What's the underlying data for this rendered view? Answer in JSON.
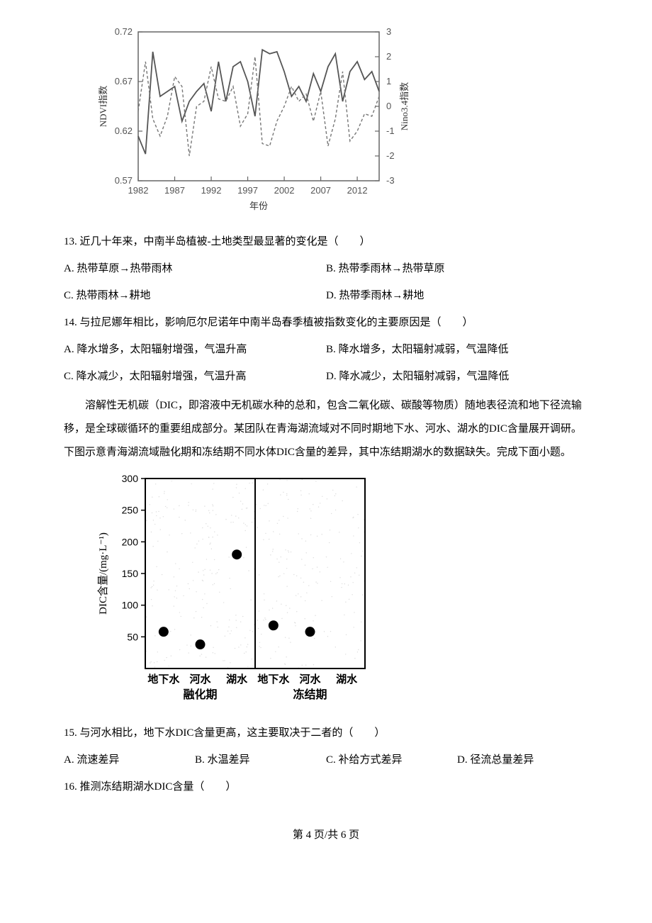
{
  "chart1": {
    "type": "line",
    "left_ylabel": "NDVI指数",
    "right_ylabel": "Nino3.4指数",
    "xlabel": "年份",
    "x_ticks": [
      "1982",
      "1987",
      "1992",
      "1997",
      "2002",
      "2007",
      "2012"
    ],
    "left_y_ticks": [
      "0.57",
      "0.62",
      "0.67",
      "0.72"
    ],
    "left_ylim": [
      0.57,
      0.72
    ],
    "right_y_ticks": [
      "-3",
      "-2",
      "-1",
      "0",
      "1",
      "2",
      "3"
    ],
    "right_ylim": [
      -3,
      3
    ],
    "axis_color": "#666666",
    "grid_color": "#cccccc",
    "tick_text_color": "#555555",
    "series": [
      {
        "name": "NDVI",
        "axis": "left",
        "style": "solid",
        "color": "#555555",
        "width": 1.8,
        "data": [
          [
            1982,
            0.615
          ],
          [
            1983,
            0.597
          ],
          [
            1984,
            0.7
          ],
          [
            1985,
            0.655
          ],
          [
            1986,
            0.66
          ],
          [
            1987,
            0.665
          ],
          [
            1988,
            0.63
          ],
          [
            1989,
            0.65
          ],
          [
            1990,
            0.66
          ],
          [
            1991,
            0.668
          ],
          [
            1992,
            0.64
          ],
          [
            1993,
            0.69
          ],
          [
            1994,
            0.65
          ],
          [
            1995,
            0.685
          ],
          [
            1996,
            0.69
          ],
          [
            1997,
            0.67
          ],
          [
            1998,
            0.635
          ],
          [
            1999,
            0.702
          ],
          [
            2000,
            0.698
          ],
          [
            2001,
            0.7
          ],
          [
            2002,
            0.68
          ],
          [
            2003,
            0.655
          ],
          [
            2004,
            0.665
          ],
          [
            2005,
            0.65
          ],
          [
            2006,
            0.678
          ],
          [
            2007,
            0.66
          ],
          [
            2008,
            0.685
          ],
          [
            2009,
            0.698
          ],
          [
            2010,
            0.65
          ],
          [
            2011,
            0.68
          ],
          [
            2012,
            0.69
          ],
          [
            2013,
            0.672
          ],
          [
            2014,
            0.68
          ],
          [
            2015,
            0.66
          ]
        ]
      },
      {
        "name": "Nino3.4",
        "axis": "right",
        "style": "dashed",
        "color": "#777777",
        "width": 1.4,
        "data": [
          [
            1982,
            -0.2
          ],
          [
            1983,
            1.8
          ],
          [
            1984,
            -0.5
          ],
          [
            1985,
            -1.2
          ],
          [
            1986,
            -0.4
          ],
          [
            1987,
            1.2
          ],
          [
            1988,
            0.8
          ],
          [
            1989,
            -2.0
          ],
          [
            1990,
            0.0
          ],
          [
            1991,
            0.2
          ],
          [
            1992,
            1.6
          ],
          [
            1993,
            0.3
          ],
          [
            1994,
            0.2
          ],
          [
            1995,
            0.8
          ],
          [
            1996,
            -0.8
          ],
          [
            1997,
            -0.3
          ],
          [
            1998,
            2.0
          ],
          [
            1999,
            -1.5
          ],
          [
            2000,
            -1.6
          ],
          [
            2001,
            -0.6
          ],
          [
            2002,
            0.0
          ],
          [
            2003,
            0.8
          ],
          [
            2004,
            0.2
          ],
          [
            2005,
            0.5
          ],
          [
            2006,
            -0.6
          ],
          [
            2007,
            0.6
          ],
          [
            2008,
            -1.6
          ],
          [
            2009,
            -0.5
          ],
          [
            2010,
            1.4
          ],
          [
            2011,
            -1.4
          ],
          [
            2012,
            -1.0
          ],
          [
            2013,
            -0.3
          ],
          [
            2014,
            -0.4
          ],
          [
            2015,
            0.4
          ]
        ]
      }
    ]
  },
  "q13": {
    "text": "13. 近几十年来，中南半岛植被-土地类型最显著的变化是（　　）",
    "optA": "A. 热带草原→热带雨林",
    "optB": "B. 热带季雨林→热带草原",
    "optC": "C. 热带雨林→耕地",
    "optD": "D. 热带季雨林→耕地"
  },
  "q14": {
    "text": "14. 与拉尼娜年相比，影响厄尔尼诺年中南半岛春季植被指数变化的主要原因是（　　）",
    "optA": "A. 降水增多，太阳辐射增强，气温升高",
    "optB": "B. 降水增多，太阳辐射减弱，气温降低",
    "optC": "C. 降水减少，太阳辐射增强，气温升高",
    "optD": "D. 降水减少，太阳辐射减弱，气温降低"
  },
  "passage2": "溶解性无机碳（DIC，即溶液中无机碳水种的总和，包含二氧化碳、碳酸等物质）随地表径流和地下径流输移，是全球碳循环的重要组成部分。某团队在青海湖流域对不同时期地下水、河水、湖水的DIC含量展开调研。下图示意青海湖流域融化期和冻结期不同水体DIC含量的差异，其中冻结期湖水的数据缺失。完成下面小题。",
  "chart2": {
    "type": "scatter",
    "ylabel": "DIC含量/(mg·L⁻¹)",
    "y_ticks": [
      "50",
      "100",
      "150",
      "200",
      "250",
      "300"
    ],
    "ylim": [
      0,
      300
    ],
    "panels": [
      "融化期",
      "冻结期"
    ],
    "x_categories": [
      "地下水",
      "河水",
      "湖水"
    ],
    "axis_color": "#000000",
    "noise_color": "#dcdcdc",
    "point_color": "#000000",
    "point_radius": 7,
    "panel_divider_color": "#000000",
    "points": [
      {
        "panel": 0,
        "cat": 0,
        "value": 58
      },
      {
        "panel": 0,
        "cat": 1,
        "value": 38
      },
      {
        "panel": 0,
        "cat": 2,
        "value": 180
      },
      {
        "panel": 1,
        "cat": 0,
        "value": 68
      },
      {
        "panel": 1,
        "cat": 1,
        "value": 58
      }
    ]
  },
  "q15": {
    "text": "15. 与河水相比，地下水DIC含量更高，这主要取决于二者的（　　）",
    "optA": "A. 流速差异",
    "optB": "B. 水温差异",
    "optC": "C. 补给方式差异",
    "optD": "D. 径流总量差异"
  },
  "q16": {
    "text": "16. 推测冻结期湖水DIC含量（　　）"
  },
  "footer": "第 4 页/共 6 页"
}
